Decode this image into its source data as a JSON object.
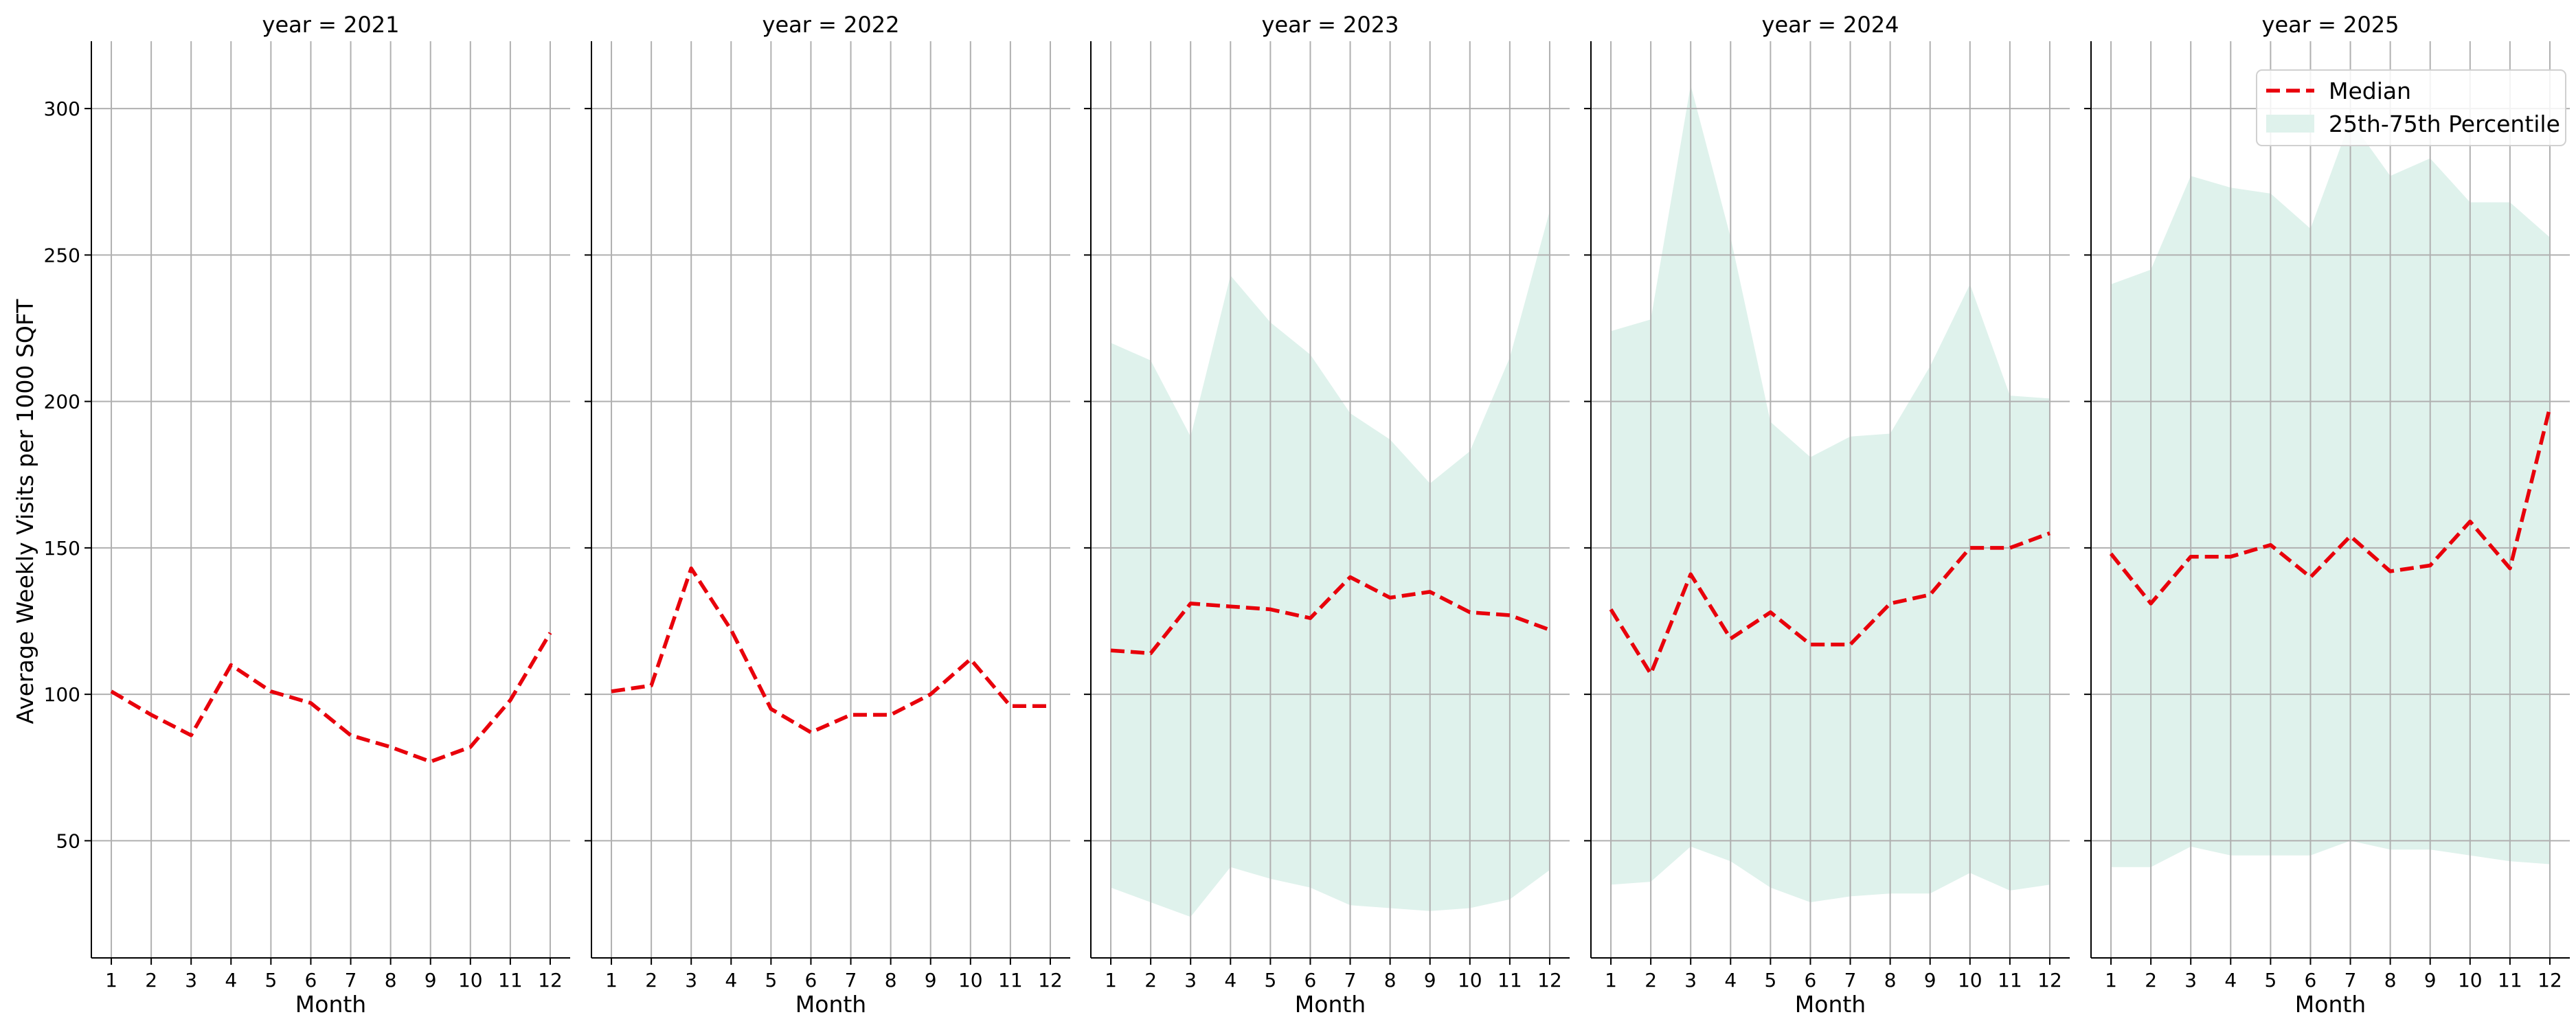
{
  "chart_data": {
    "type": "line",
    "ylabel": "Average Weekly Visits per 1000 SQFT",
    "xlabel": "Month",
    "ylim": [
      10,
      323
    ],
    "xlim": [
      0.5,
      12.5
    ],
    "yticks": [
      50,
      100,
      150,
      200,
      250,
      300
    ],
    "xticks": [
      1,
      2,
      3,
      4,
      5,
      6,
      7,
      8,
      9,
      10,
      11,
      12
    ],
    "grid": true,
    "legend": {
      "placement": "top-right",
      "panel": "year = 2025",
      "entries": [
        "Median",
        "25th-75th Percentile"
      ]
    },
    "colors": {
      "median": "#e8000b",
      "band": "#dff2ec"
    },
    "facets": [
      {
        "title": "year = 2021",
        "x": [
          1,
          2,
          3,
          4,
          5,
          6,
          7,
          8,
          9,
          10,
          11,
          12
        ],
        "median": [
          101,
          93,
          86,
          110,
          101,
          97,
          86,
          82,
          77,
          82,
          98,
          121
        ],
        "p25": null,
        "p75": null
      },
      {
        "title": "year = 2022",
        "x": [
          1,
          2,
          3,
          4,
          5,
          6,
          7,
          8,
          9,
          10,
          11,
          12
        ],
        "median": [
          101,
          103,
          143,
          122,
          95,
          87,
          93,
          93,
          100,
          112,
          96,
          96
        ],
        "p25": null,
        "p75": null
      },
      {
        "title": "year = 2023",
        "x": [
          1,
          2,
          3,
          4,
          5,
          6,
          7,
          8,
          9,
          10,
          11,
          12
        ],
        "median": [
          115,
          114,
          131,
          130,
          129,
          126,
          140,
          133,
          135,
          128,
          127,
          122
        ],
        "p25": [
          34,
          29,
          24,
          41,
          37,
          34,
          28,
          27,
          26,
          27,
          30,
          40
        ],
        "p75": [
          220,
          214,
          188,
          243,
          227,
          216,
          196,
          187,
          172,
          183,
          215,
          265
        ]
      },
      {
        "title": "year = 2024",
        "x": [
          1,
          2,
          3,
          4,
          5,
          6,
          7,
          8,
          9,
          10,
          11,
          12
        ],
        "median": [
          129,
          107,
          141,
          119,
          128,
          117,
          117,
          131,
          134,
          150,
          150,
          155
        ],
        "p25": [
          35,
          36,
          48,
          43,
          34,
          29,
          31,
          32,
          32,
          39,
          33,
          35
        ],
        "p75": [
          224,
          228,
          308,
          256,
          193,
          181,
          188,
          189,
          212,
          240,
          202,
          201
        ]
      },
      {
        "title": "year = 2025",
        "x": [
          1,
          2,
          3,
          4,
          5,
          6,
          7,
          8,
          9,
          10,
          11,
          12
        ],
        "median": [
          148,
          131,
          147,
          147,
          151,
          140,
          154,
          142,
          144,
          159,
          143,
          198
        ],
        "p25": [
          41,
          41,
          48,
          45,
          45,
          45,
          50,
          47,
          47,
          45,
          43,
          42
        ],
        "p75": [
          240,
          245,
          277,
          273,
          271,
          259,
          296,
          277,
          283,
          268,
          268,
          256
        ]
      }
    ]
  }
}
